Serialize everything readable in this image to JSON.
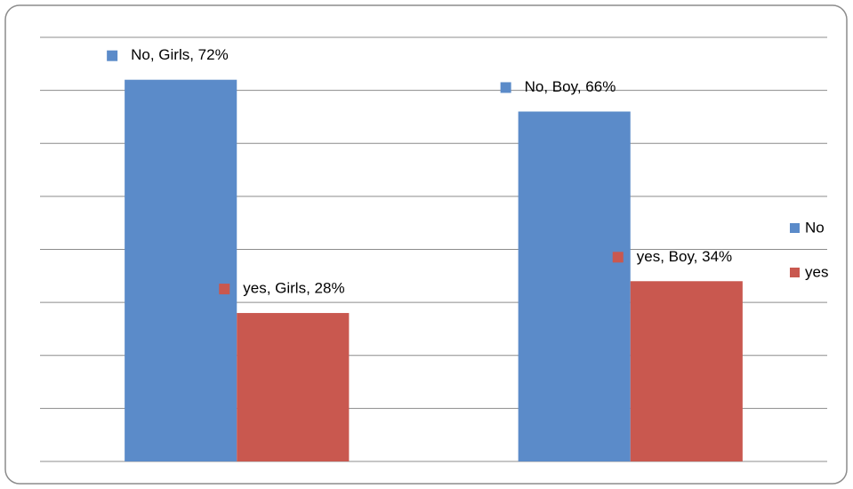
{
  "chart_data": {
    "type": "bar",
    "categories": [
      null,
      null
    ],
    "series": [
      {
        "name": "No",
        "color": "#5b8bc9",
        "values": [
          72,
          66
        ],
        "value_labels": [
          "No, Girls, 72%",
          "No, Boy, 66%"
        ]
      },
      {
        "name": "yes",
        "color": "#c9584f",
        "values": [
          28,
          34
        ],
        "value_labels": [
          "yes, Girls, 28%",
          "yes, Boy, 34%"
        ]
      }
    ],
    "ylim": [
      0,
      80
    ],
    "yticks": [
      0,
      10,
      20,
      30,
      40,
      50,
      60,
      70,
      80
    ],
    "grid": true,
    "legend": "right"
  }
}
